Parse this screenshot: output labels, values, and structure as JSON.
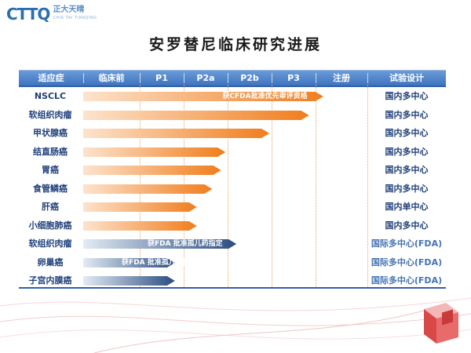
{
  "logo": {
    "mark": "CTTQ",
    "cn": "正大天晴",
    "en": "CHIA TAI TIANQING"
  },
  "title": "安罗替尼临床研究进展",
  "header": {
    "columns": [
      "适应症",
      "临床前",
      "P1",
      "P2a",
      "P2b",
      "P3",
      "注册",
      "试验设计"
    ]
  },
  "colors": {
    "header": "#4a7fc6",
    "orange_bar": "#f07d1d",
    "blue_bar": "#2a4d80",
    "label_text": "#1f3f7a"
  },
  "stage_scale": [
    "临床前",
    "P1",
    "P2a",
    "P2b",
    "P3",
    "注册"
  ],
  "rows": [
    {
      "indication": "NSCLC",
      "progress": 5.15,
      "color": "orange",
      "note": "获CFDA批准优先审评资格",
      "design": "国内多中心"
    },
    {
      "indication": "软组织肉瘤",
      "progress": 4.85,
      "color": "orange",
      "note": "",
      "design": "国内多中心"
    },
    {
      "indication": "甲状腺癌",
      "progress": 3.95,
      "color": "orange",
      "note": "",
      "design": "国内多中心"
    },
    {
      "indication": "结直肠癌",
      "progress": 2.95,
      "color": "orange",
      "note": "",
      "design": "国内多中心"
    },
    {
      "indication": "胃癌",
      "progress": 2.85,
      "color": "orange",
      "note": "",
      "design": "国内多中心"
    },
    {
      "indication": "食管鳞癌",
      "progress": 2.65,
      "color": "orange",
      "note": "",
      "design": "国内多中心"
    },
    {
      "indication": "肝癌",
      "progress": 2.3,
      "color": "orange",
      "note": "",
      "design": "国内单中心"
    },
    {
      "indication": "小细胞肺癌",
      "progress": 2.3,
      "color": "orange",
      "note": "",
      "design": "国内多中心"
    },
    {
      "indication": "软组织肉瘤",
      "progress": 3.2,
      "color": "blue",
      "note": "获FDA 批准孤儿药指定",
      "design": "国际多中心(FDA)"
    },
    {
      "indication": "卵巢癌",
      "progress": 1.8,
      "color": "blue",
      "note": "获FDA 批准孤儿药指定",
      "design": "国际多中心(FDA)"
    },
    {
      "indication": "子宫内膜癌",
      "progress": 1.8,
      "color": "blue",
      "note": "",
      "design": "国际多中心(FDA)"
    }
  ]
}
